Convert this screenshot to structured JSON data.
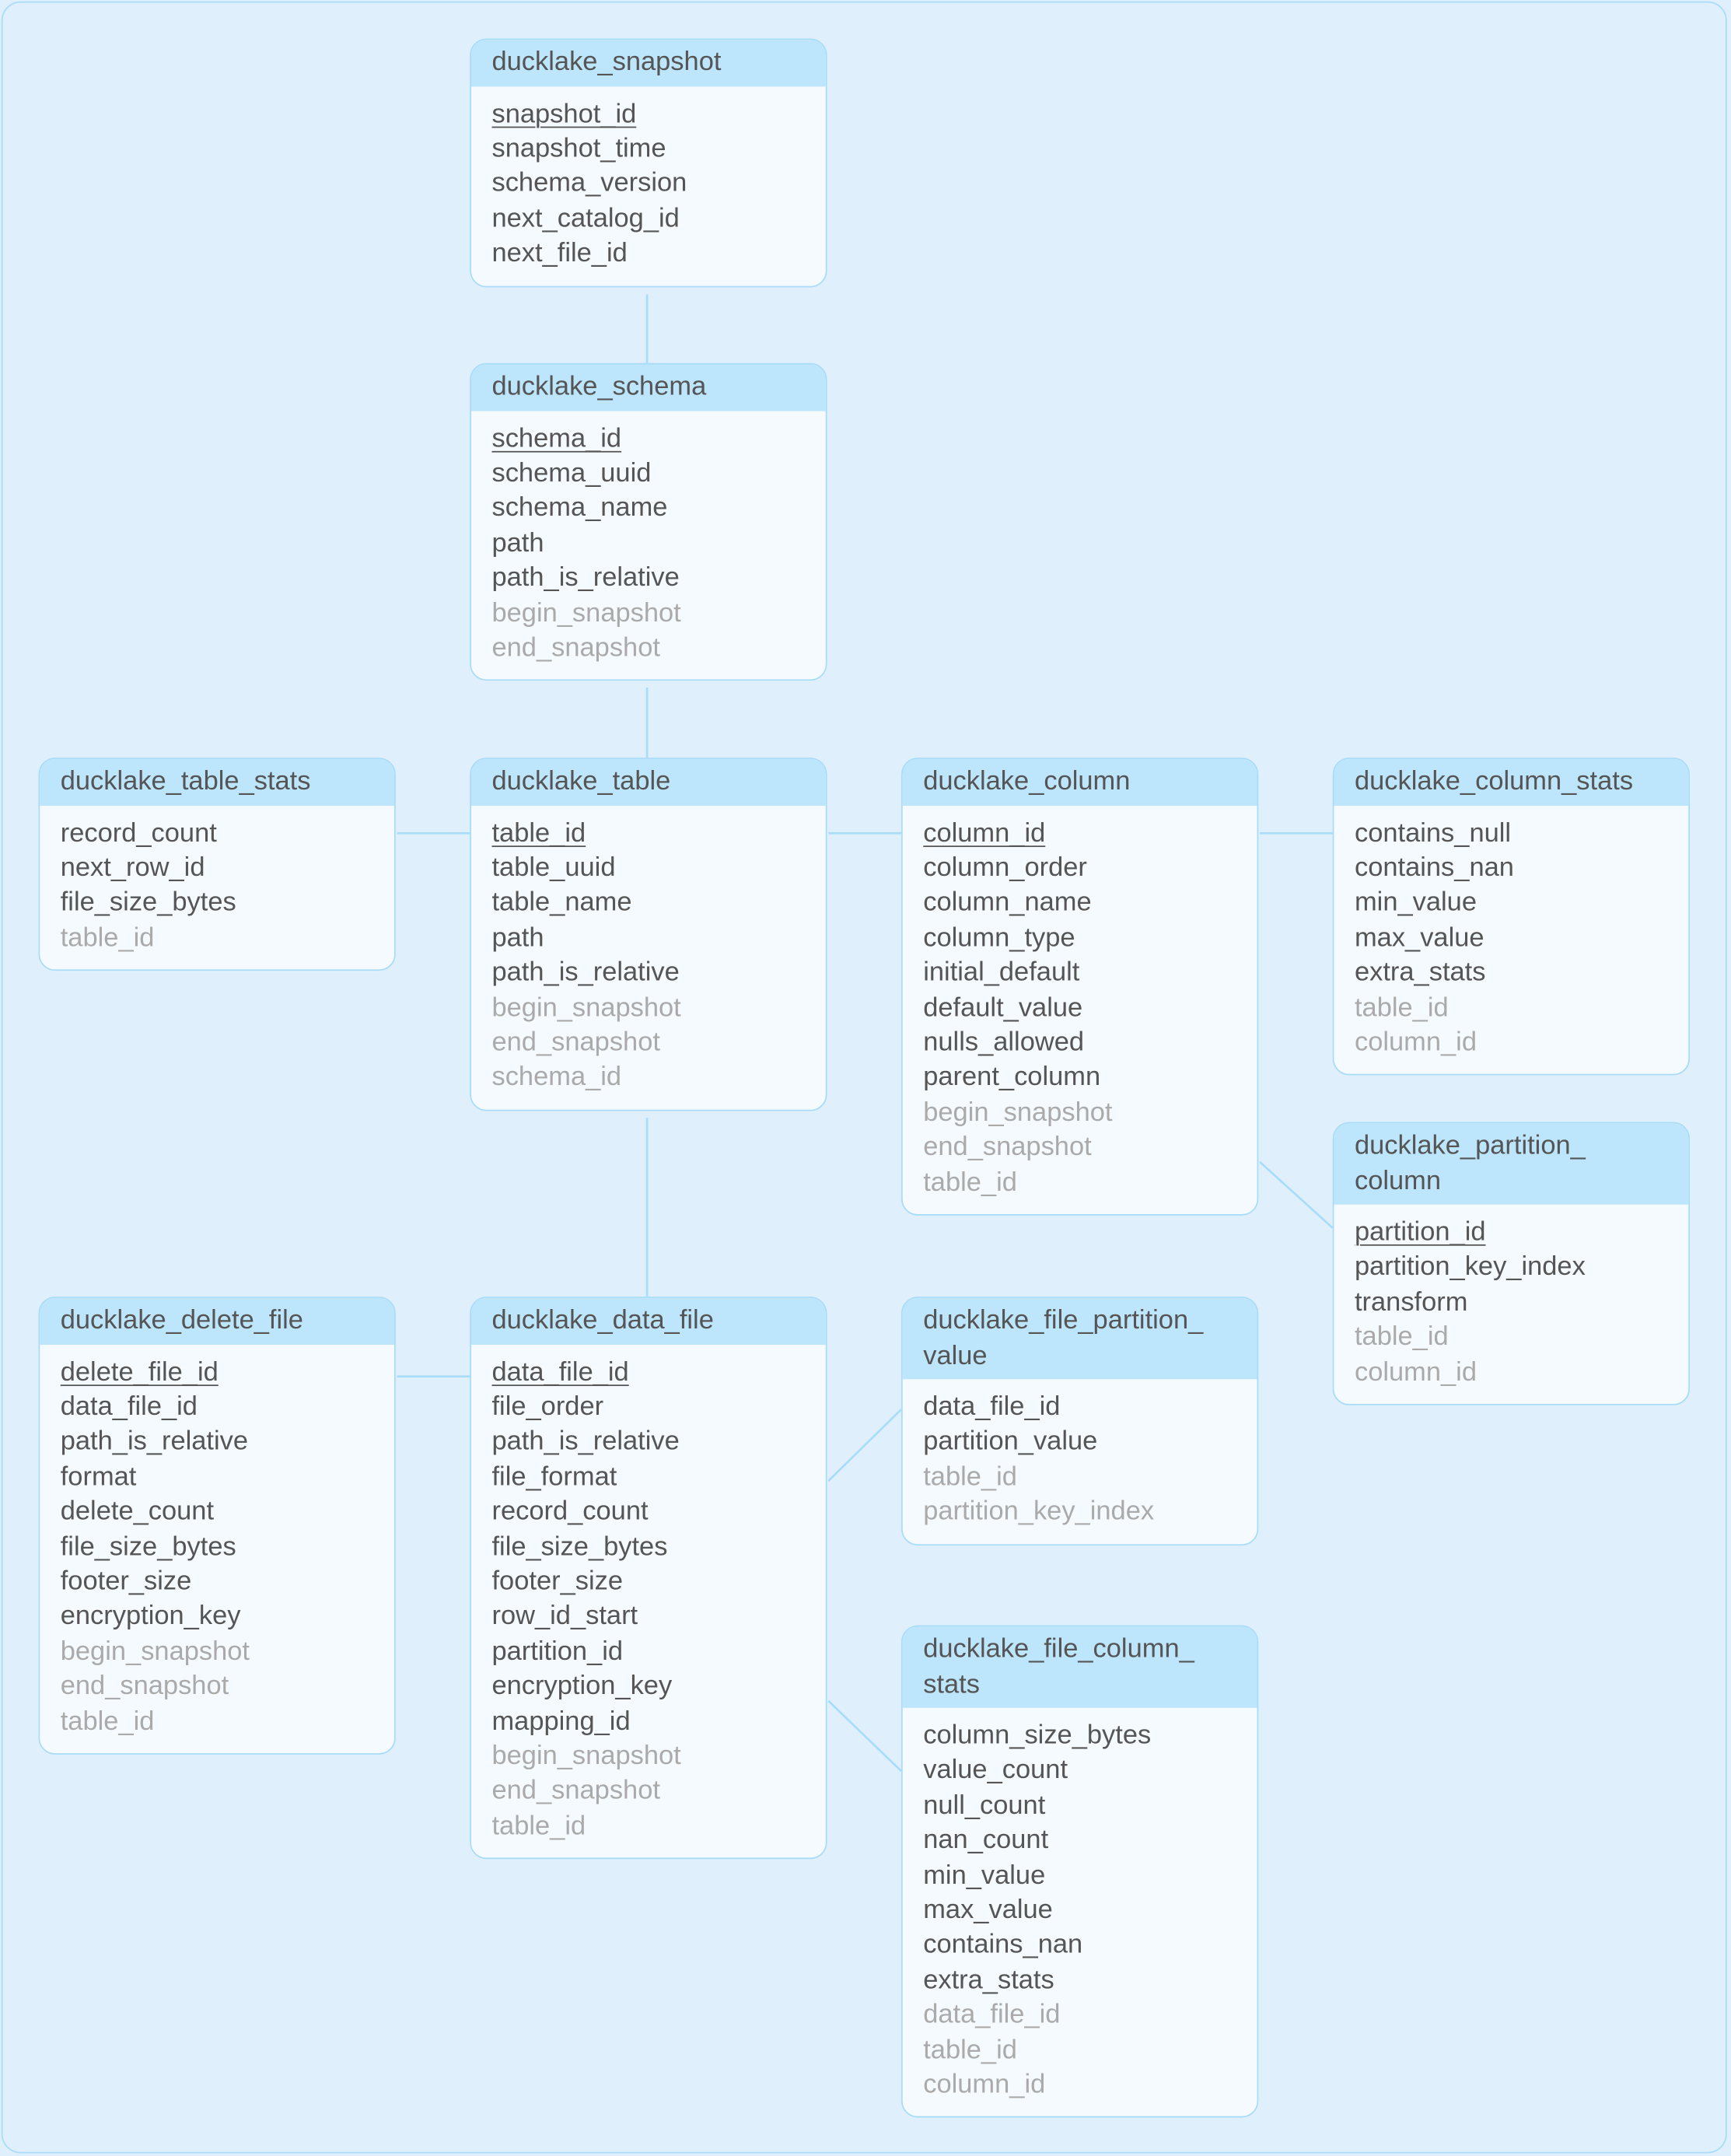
{
  "colors": {
    "background": "#dff0fc",
    "border": "#a8dcf9",
    "header": "#bde5fc",
    "body": "#f5fafe",
    "text": "#555555",
    "foreign_key_text": "#aaaaaa"
  },
  "tables": [
    {
      "id": "snapshot",
      "title": "ducklake_snapshot",
      "rows": [
        {
          "name": "snapshot_id",
          "pk": true
        },
        {
          "name": "snapshot_time"
        },
        {
          "name": "schema_version"
        },
        {
          "name": "next_catalog_id"
        },
        {
          "name": "next_file_id"
        }
      ]
    },
    {
      "id": "schema",
      "title": "ducklake_schema",
      "rows": [
        {
          "name": "schema_id",
          "pk": true
        },
        {
          "name": "schema_uuid"
        },
        {
          "name": "schema_name"
        },
        {
          "name": "path"
        },
        {
          "name": "path_is_relative"
        },
        {
          "name": "begin_snapshot",
          "fk": true
        },
        {
          "name": "end_snapshot",
          "fk": true
        }
      ]
    },
    {
      "id": "table_stats",
      "title": "ducklake_table_stats",
      "rows": [
        {
          "name": "record_count"
        },
        {
          "name": "next_row_id"
        },
        {
          "name": "file_size_bytes"
        },
        {
          "name": "table_id",
          "fk": true
        }
      ]
    },
    {
      "id": "table",
      "title": "ducklake_table",
      "rows": [
        {
          "name": "table_id",
          "pk": true
        },
        {
          "name": "table_uuid"
        },
        {
          "name": "table_name"
        },
        {
          "name": "path"
        },
        {
          "name": "path_is_relative"
        },
        {
          "name": "begin_snapshot",
          "fk": true
        },
        {
          "name": "end_snapshot",
          "fk": true
        },
        {
          "name": "schema_id",
          "fk": true
        }
      ]
    },
    {
      "id": "column",
      "title": "ducklake_column",
      "rows": [
        {
          "name": "column_id",
          "pk": true
        },
        {
          "name": "column_order"
        },
        {
          "name": "column_name"
        },
        {
          "name": "column_type"
        },
        {
          "name": "initial_default"
        },
        {
          "name": "default_value"
        },
        {
          "name": "nulls_allowed"
        },
        {
          "name": "parent_column"
        },
        {
          "name": "begin_snapshot",
          "fk": true
        },
        {
          "name": "end_snapshot",
          "fk": true
        },
        {
          "name": "table_id",
          "fk": true
        }
      ]
    },
    {
      "id": "column_stats",
      "title": "ducklake_column_stats",
      "rows": [
        {
          "name": "contains_null"
        },
        {
          "name": "contains_nan"
        },
        {
          "name": "min_value"
        },
        {
          "name": "max_value"
        },
        {
          "name": "extra_stats"
        },
        {
          "name": "table_id",
          "fk": true
        },
        {
          "name": "column_id",
          "fk": true
        }
      ]
    },
    {
      "id": "partition_column",
      "title": "ducklake_partition_\ncolumn",
      "rows": [
        {
          "name": "partition_id",
          "pk": true
        },
        {
          "name": "partition_key_index"
        },
        {
          "name": "transform"
        },
        {
          "name": "table_id",
          "fk": true
        },
        {
          "name": "column_id",
          "fk": true
        }
      ]
    },
    {
      "id": "delete_file",
      "title": "ducklake_delete_file",
      "rows": [
        {
          "name": "delete_file_id",
          "pk": true
        },
        {
          "name": "data_file_id"
        },
        {
          "name": "path_is_relative"
        },
        {
          "name": "format"
        },
        {
          "name": "delete_count"
        },
        {
          "name": "file_size_bytes"
        },
        {
          "name": "footer_size"
        },
        {
          "name": "encryption_key"
        },
        {
          "name": "begin_snapshot",
          "fk": true
        },
        {
          "name": "end_snapshot",
          "fk": true
        },
        {
          "name": "table_id",
          "fk": true
        }
      ]
    },
    {
      "id": "data_file",
      "title": "ducklake_data_file",
      "rows": [
        {
          "name": "data_file_id",
          "pk": true
        },
        {
          "name": "file_order"
        },
        {
          "name": "path_is_relative"
        },
        {
          "name": "file_format"
        },
        {
          "name": "record_count"
        },
        {
          "name": "file_size_bytes"
        },
        {
          "name": "footer_size"
        },
        {
          "name": "row_id_start"
        },
        {
          "name": "partition_id"
        },
        {
          "name": "encryption_key"
        },
        {
          "name": "mapping_id"
        },
        {
          "name": "begin_snapshot",
          "fk": true
        },
        {
          "name": "end_snapshot",
          "fk": true
        },
        {
          "name": "table_id",
          "fk": true
        }
      ]
    },
    {
      "id": "file_partition_value",
      "title": "ducklake_file_partition_\nvalue",
      "rows": [
        {
          "name": "data_file_id"
        },
        {
          "name": "partition_value"
        },
        {
          "name": "table_id",
          "fk": true
        },
        {
          "name": "partition_key_index",
          "fk": true
        }
      ]
    },
    {
      "id": "file_column_stats",
      "title": "ducklake_file_column_\nstats",
      "rows": [
        {
          "name": "column_size_bytes"
        },
        {
          "name": "value_count"
        },
        {
          "name": "null_count"
        },
        {
          "name": "nan_count"
        },
        {
          "name": "min_value"
        },
        {
          "name": "max_value"
        },
        {
          "name": "contains_nan"
        },
        {
          "name": "extra_stats"
        },
        {
          "name": "data_file_id",
          "fk": true
        },
        {
          "name": "table_id",
          "fk": true
        },
        {
          "name": "column_id",
          "fk": true
        }
      ]
    }
  ],
  "relations": [
    [
      "snapshot",
      "schema"
    ],
    [
      "schema",
      "table"
    ],
    [
      "table_stats",
      "table"
    ],
    [
      "table",
      "column"
    ],
    [
      "column",
      "column_stats"
    ],
    [
      "column",
      "partition_column"
    ],
    [
      "table",
      "data_file"
    ],
    [
      "delete_file",
      "data_file"
    ],
    [
      "data_file",
      "file_partition_value"
    ],
    [
      "data_file",
      "file_column_stats"
    ]
  ]
}
